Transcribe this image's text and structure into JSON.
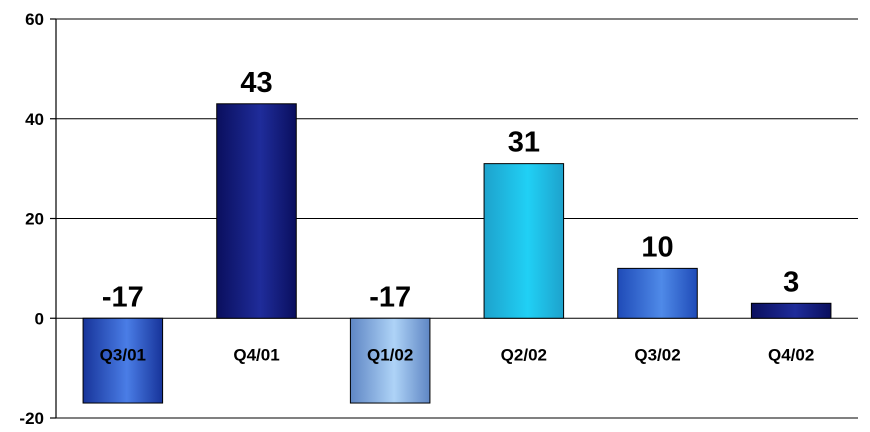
{
  "chart_data": {
    "type": "bar",
    "categories": [
      "Q3/01",
      "Q4/01",
      "Q1/02",
      "Q2/02",
      "Q3/02",
      "Q4/02"
    ],
    "values": [
      -17,
      43,
      -17,
      31,
      10,
      3
    ],
    "data_labels": [
      "-17",
      "43",
      "-17",
      "31",
      "10",
      "3"
    ],
    "ylim": [
      -20,
      60
    ],
    "yticks": [
      -20,
      0,
      20,
      40,
      60
    ],
    "ytick_labels": [
      "-20",
      "0",
      "20",
      "40",
      "60"
    ],
    "grid": true,
    "legend": false,
    "bar_colors": [
      {
        "dark": "#17349a",
        "light": "#4a7de6"
      },
      {
        "dark": "#0a0f5e",
        "light": "#1f2c9a"
      },
      {
        "dark": "#5f86c4",
        "light": "#aed3f7"
      },
      {
        "dark": "#1ea2cc",
        "light": "#20d0f5"
      },
      {
        "dark": "#1f4bb8",
        "light": "#4f8ae8"
      },
      {
        "dark": "#0a0f5e",
        "light": "#1f2c9a"
      }
    ]
  }
}
